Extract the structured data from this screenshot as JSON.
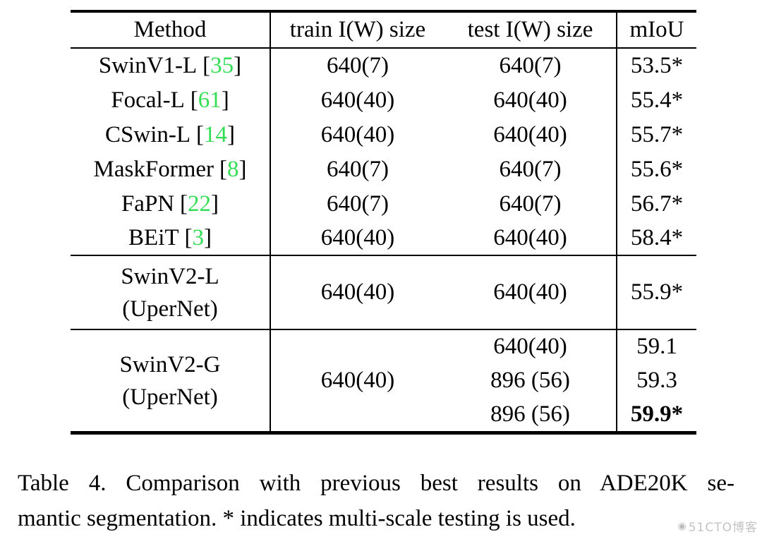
{
  "table": {
    "cite_open": "[",
    "cite_close": "]",
    "header": {
      "method": "Method",
      "train_size": "train I(W) size",
      "test_size": "test I(W) size",
      "miou": "mIoU"
    },
    "rows": [
      {
        "method": "SwinV1-L",
        "cite": "35",
        "train": "640(7)",
        "test": "640(7)",
        "miou": "53.5*"
      },
      {
        "method": "Focal-L",
        "cite": "61",
        "train": "640(40)",
        "test": "640(40)",
        "miou": "55.4*"
      },
      {
        "method": "CSwin-L",
        "cite": "14",
        "train": "640(40)",
        "test": "640(40)",
        "miou": "55.7*"
      },
      {
        "method": "MaskFormer",
        "cite": "8",
        "train": "640(7)",
        "test": "640(7)",
        "miou": "55.6*"
      },
      {
        "method": "FaPN",
        "cite": "22",
        "train": "640(7)",
        "test": "640(7)",
        "miou": "56.7*"
      },
      {
        "method": "BEiT",
        "cite": "3",
        "train": "640(40)",
        "test": "640(40)",
        "miou": "58.4*"
      }
    ],
    "swinv2_l": {
      "method_line1": "SwinV2-L",
      "method_line2": "(UperNet)",
      "train": "640(40)",
      "test": "640(40)",
      "miou": "55.9*"
    },
    "swinv2_g": {
      "method_line1": "SwinV2-G",
      "method_line2": "(UperNet)",
      "train": "640(40)",
      "tests": [
        "640(40)",
        "896 (56)",
        "896 (56)"
      ],
      "mious": [
        "59.1",
        "59.3",
        "59.9*"
      ]
    },
    "colors": {
      "citation_green": "#33dd55",
      "text_black": "#000000"
    }
  },
  "caption": {
    "line1": "Table 4.  Comparison with previous best results on ADE20K se-",
    "line2": "mantic segmentation. * indicates multi-scale testing is used."
  },
  "watermark": {
    "icon": "◉",
    "text": "51CTO博客"
  }
}
